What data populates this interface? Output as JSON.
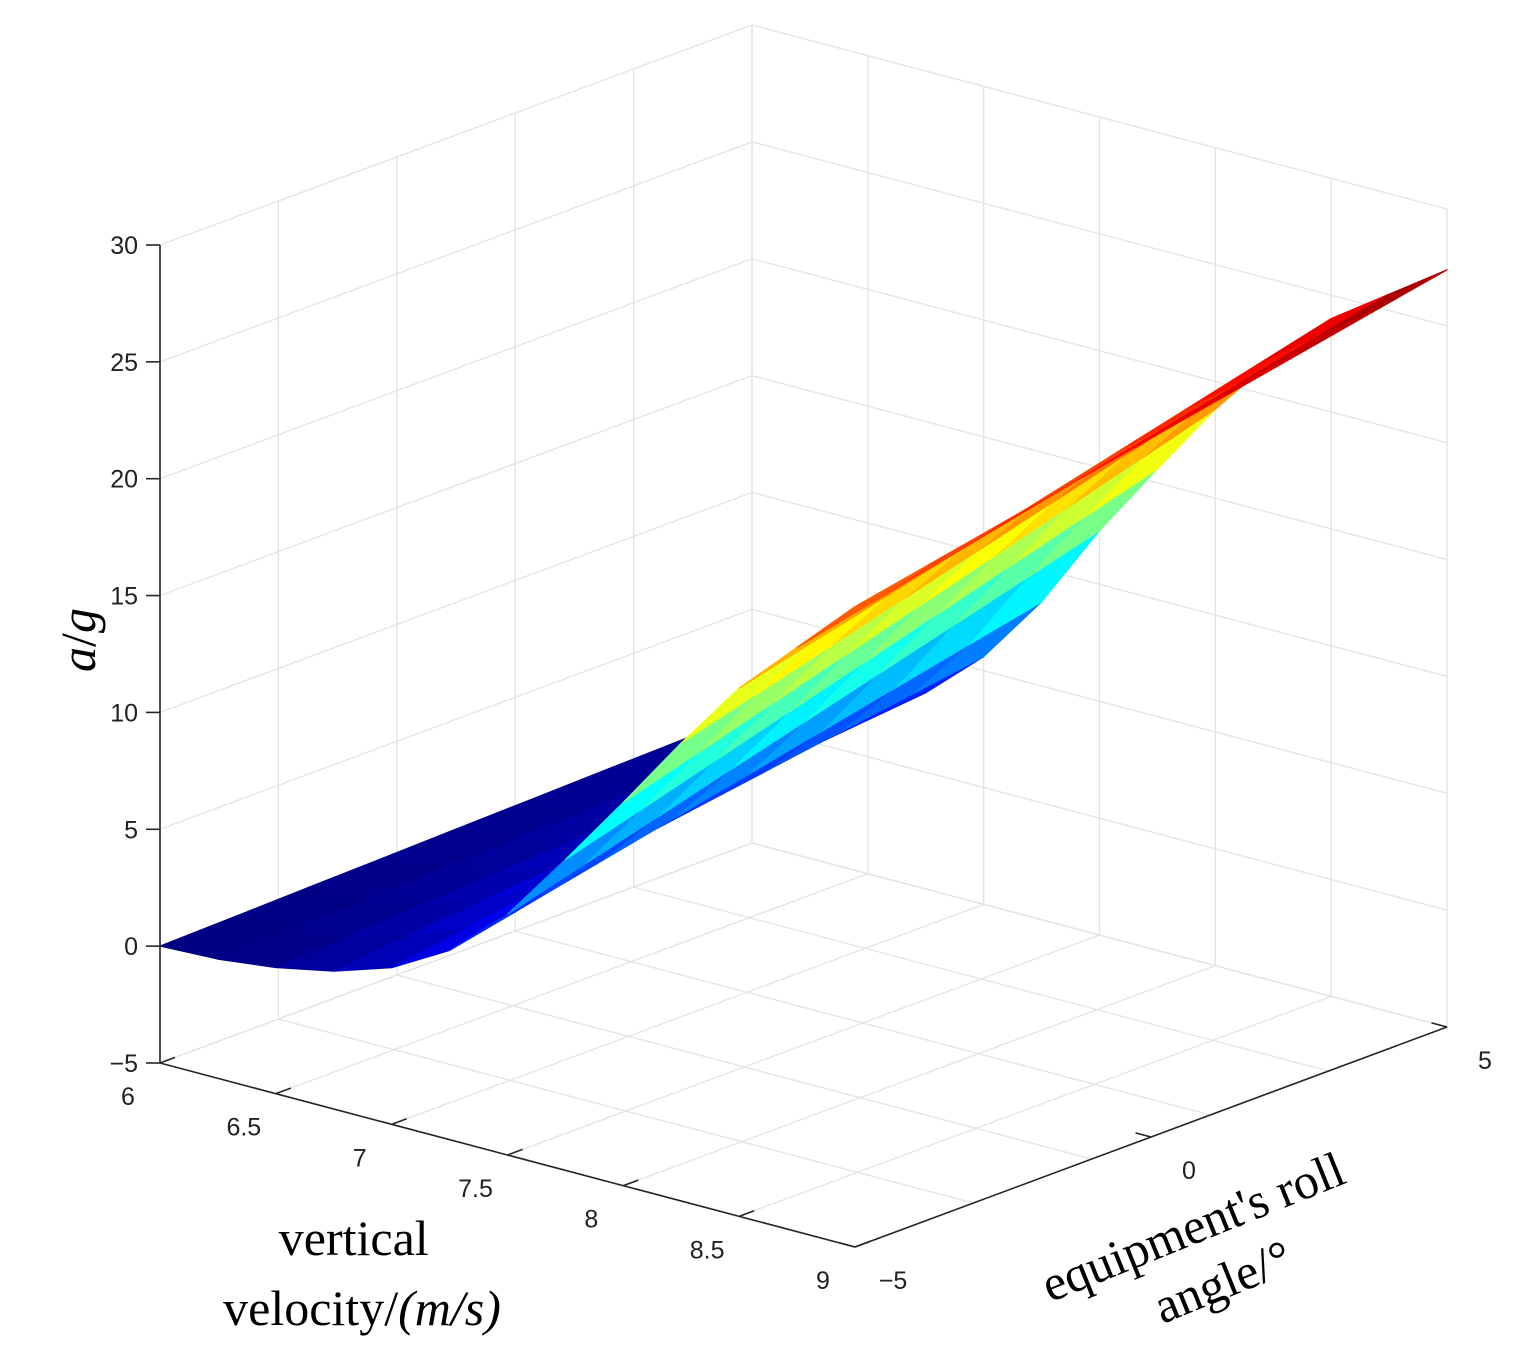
{
  "chart_data": {
    "type": "surface",
    "title": "",
    "colormap": "jet",
    "xlabel": "vertical velocity/(m/s)",
    "xlabel_lines": [
      "vertical",
      "velocity/",
      "(m/s)"
    ],
    "ylabel": "equipment's roll angle/°",
    "ylabel_lines": [
      "equipment's roll",
      "angle/",
      "°"
    ],
    "zlabel": "a/g",
    "zlabel_parts": [
      "a",
      "/",
      "g"
    ],
    "xlim": [
      6,
      9
    ],
    "ylim": [
      -5,
      5
    ],
    "zlim": [
      -5,
      30
    ],
    "x_ticks": [
      "6",
      "6.5",
      "7",
      "7.5",
      "8",
      "8.5",
      "9"
    ],
    "y_ticks": [
      "−5",
      "0",
      "5"
    ],
    "z_ticks": [
      "−5",
      "0",
      "5",
      "10",
      "15",
      "20",
      "25",
      "30"
    ],
    "grid": true,
    "surface_profile": {
      "x": [
        6,
        6.25,
        6.5,
        6.75,
        7,
        7.25,
        7.5,
        7.75,
        8,
        8.25,
        8.5,
        8.75,
        9
      ],
      "z_at_roll_min": [
        0.0,
        0.1,
        0.4,
        0.9,
        1.7,
        3.1,
        5.3,
        8.3,
        11.4,
        14.6,
        17.6,
        20.0,
        22.4
      ],
      "z_at_roll_max": [
        0.6,
        0.9,
        1.8,
        3.4,
        5.6,
        8.6,
        12.3,
        15.6,
        18.8,
        21.6,
        24.0,
        25.7,
        27.4
      ]
    }
  }
}
